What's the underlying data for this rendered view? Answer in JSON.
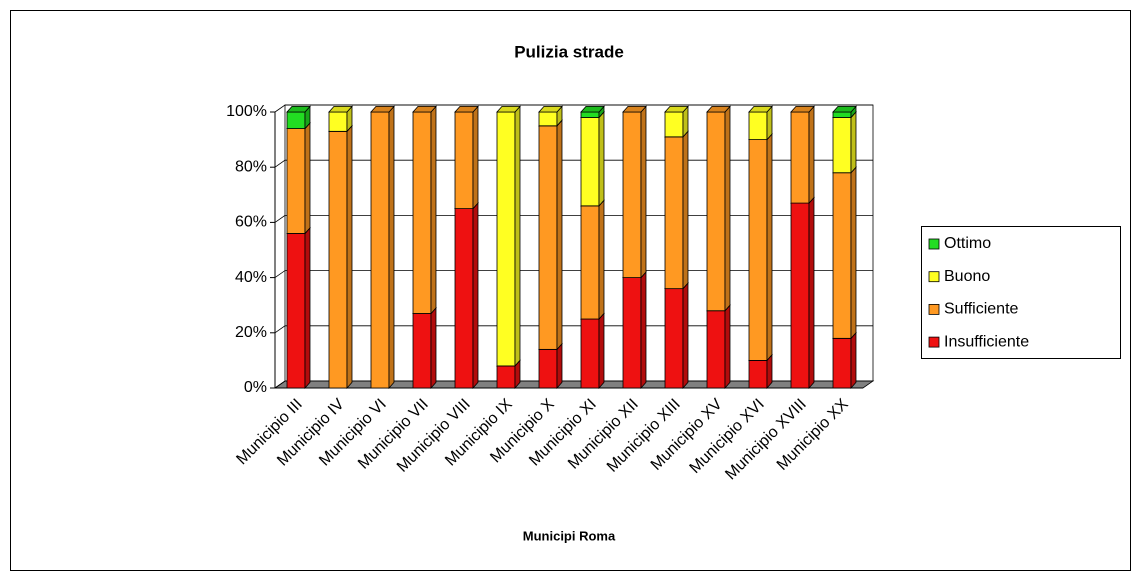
{
  "chart_data": {
    "type": "bar",
    "stacked": true,
    "percent": true,
    "title": "Pulizia strade",
    "x_label": "Municipi Roma",
    "categories": [
      "Municipio III",
      "Municipio IV",
      "Municipio VI",
      "Municipio VII",
      "Municipio VIII",
      "Municipio IX",
      "Municipio X",
      "Municipio XI",
      "Municipio XII",
      "Municipio XIII",
      "Municipio XV",
      "Municipio XVI",
      "Municipio XVIII",
      "Municipio XX"
    ],
    "series": [
      {
        "name": "Ottimo",
        "color": "#22dd22",
        "values": [
          6,
          0,
          0,
          0,
          0,
          0,
          0,
          2,
          0,
          0,
          0,
          0,
          0,
          2
        ]
      },
      {
        "name": "Buono",
        "color": "#ffff22",
        "values": [
          0,
          7,
          0,
          0,
          0,
          92,
          5,
          32,
          0,
          9,
          0,
          10,
          0,
          20
        ]
      },
      {
        "name": "Sufficiente",
        "color": "#ff9922",
        "values": [
          38,
          93,
          100,
          73,
          35,
          0,
          81,
          41,
          60,
          55,
          72,
          80,
          33,
          60
        ]
      },
      {
        "name": "Insufficiente",
        "color": "#ee1111",
        "values": [
          56,
          0,
          0,
          27,
          65,
          8,
          14,
          25,
          40,
          36,
          28,
          10,
          67,
          18
        ]
      }
    ],
    "ylim": [
      0,
      100
    ],
    "yticks": [
      {
        "value": 0,
        "label": "0%"
      },
      {
        "value": 20,
        "label": "20%"
      },
      {
        "value": 40,
        "label": "40%"
      },
      {
        "value": 60,
        "label": "60%"
      },
      {
        "value": 80,
        "label": "80%"
      },
      {
        "value": 100,
        "label": "100%"
      }
    ],
    "grid": true,
    "legend": "right"
  }
}
